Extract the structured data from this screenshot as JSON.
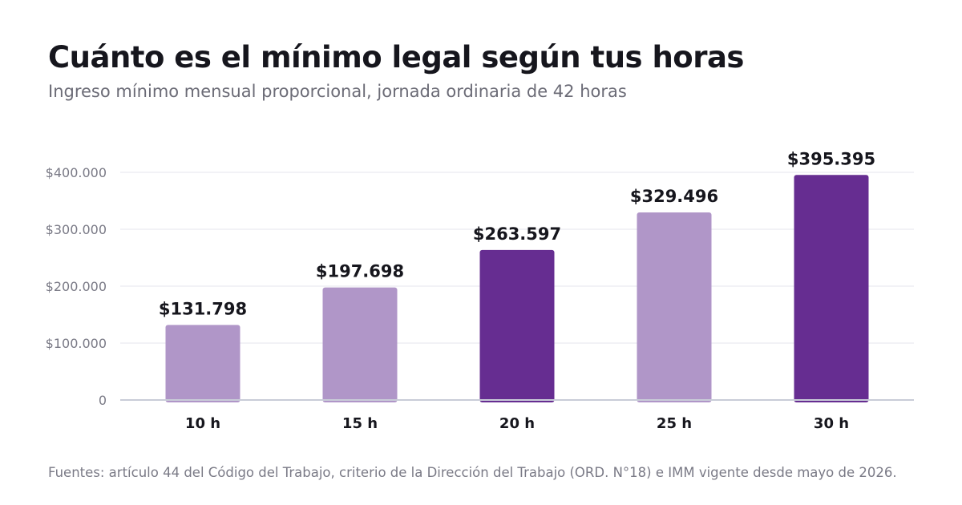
{
  "header": {
    "title": "Cuánto es el mínimo legal según tus horas",
    "subtitle": "Ingreso mínimo mensual proporcional, jornada ordinaria de 42 horas"
  },
  "footer": {
    "source": "Fuentes: artículo 44 del Código del Trabajo, criterio de la Dirección del Trabajo (ORD. N°18) e IMM vigente desde mayo de 2026."
  },
  "colors": {
    "light_bar": "#b096c8",
    "dark_bar": "#662d91",
    "gridline": "#e6e6ec",
    "baseline": "#c9ccd8"
  },
  "chart_data": {
    "type": "bar",
    "title": "Cuánto es el mínimo legal según tus horas",
    "subtitle": "Ingreso mínimo mensual proporcional, jornada ordinaria de 42 horas",
    "categories": [
      "10 h",
      "15 h",
      "20 h",
      "25 h",
      "30 h"
    ],
    "values": [
      131798,
      197698,
      263597,
      329496,
      395395
    ],
    "value_labels": [
      "$131.798",
      "$197.698",
      "$263.597",
      "$329.496",
      "$395.395"
    ],
    "highlighted": [
      false,
      false,
      true,
      false,
      true
    ],
    "ylim": [
      0,
      400000
    ],
    "yticks": [
      0,
      100000,
      200000,
      300000,
      400000
    ],
    "ytick_labels": [
      "0",
      "$100.000",
      "$200.000",
      "$300.000",
      "$400.000"
    ],
    "grid": true,
    "legend": "none"
  }
}
